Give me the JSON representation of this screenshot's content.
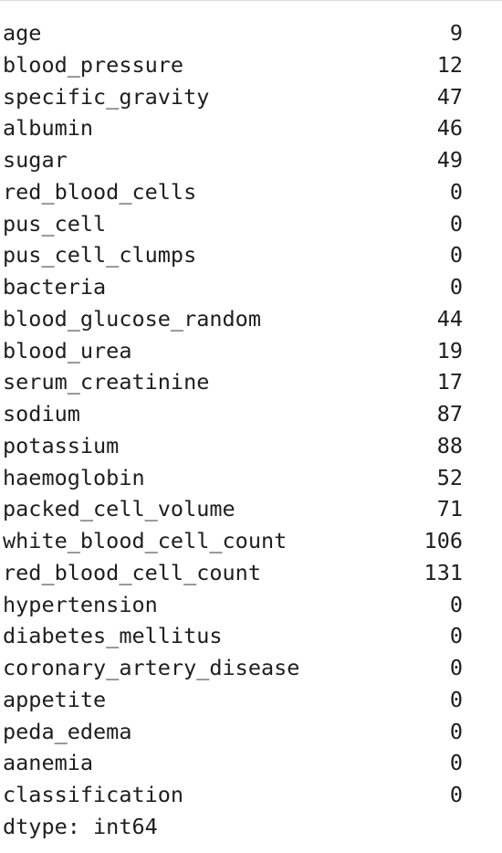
{
  "series_output": {
    "rows": [
      {
        "label": "age",
        "value": "9"
      },
      {
        "label": "blood_pressure",
        "value": "12"
      },
      {
        "label": "specific_gravity",
        "value": "47"
      },
      {
        "label": "albumin",
        "value": "46"
      },
      {
        "label": "sugar",
        "value": "49"
      },
      {
        "label": "red_blood_cells",
        "value": "0"
      },
      {
        "label": "pus_cell",
        "value": "0"
      },
      {
        "label": "pus_cell_clumps",
        "value": "0"
      },
      {
        "label": "bacteria",
        "value": "0"
      },
      {
        "label": "blood_glucose_random",
        "value": "44"
      },
      {
        "label": "blood_urea",
        "value": "19"
      },
      {
        "label": "serum_creatinine",
        "value": "17"
      },
      {
        "label": "sodium",
        "value": "87"
      },
      {
        "label": "potassium",
        "value": "88"
      },
      {
        "label": "haemoglobin",
        "value": "52"
      },
      {
        "label": "packed_cell_volume",
        "value": "71"
      },
      {
        "label": "white_blood_cell_count",
        "value": "106"
      },
      {
        "label": "red_blood_cell_count",
        "value": "131"
      },
      {
        "label": "hypertension",
        "value": "0"
      },
      {
        "label": "diabetes_mellitus",
        "value": "0"
      },
      {
        "label": "coronary_artery_disease",
        "value": "0"
      },
      {
        "label": "appetite",
        "value": "0"
      },
      {
        "label": "peda_edema",
        "value": "0"
      },
      {
        "label": "aanemia",
        "value": "0"
      },
      {
        "label": "classification",
        "value": "0"
      }
    ],
    "dtype_line": "dtype: int64"
  },
  "colors": {
    "text": "#1e1e1e",
    "background": "#ffffff",
    "border": "#d9d9d9"
  }
}
